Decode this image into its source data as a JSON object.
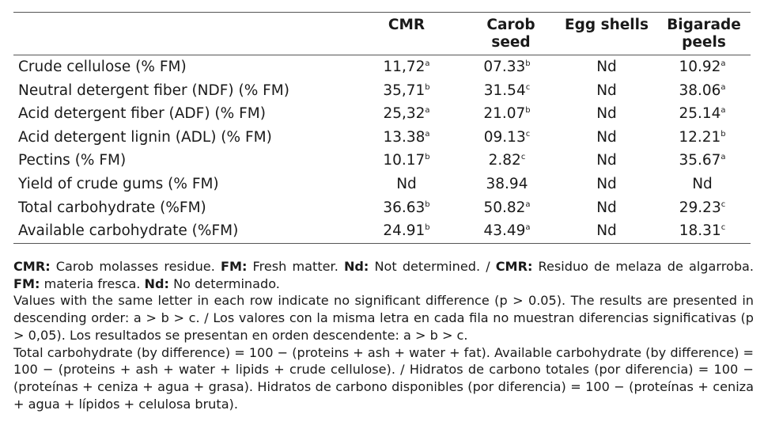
{
  "table": {
    "headers": [
      "",
      "CMR",
      "Carob seed",
      "Egg shells",
      "Bigarade peels"
    ],
    "rows": [
      {
        "label": "Crude cellulose (% FM)",
        "cells": [
          {
            "v": "11,72",
            "s": "a"
          },
          {
            "v": "07.33",
            "s": "b"
          },
          {
            "v": "Nd",
            "s": ""
          },
          {
            "v": "10.92",
            "s": "a"
          }
        ]
      },
      {
        "label": "Neutral detergent fiber (NDF) (% FM)",
        "cells": [
          {
            "v": "35,71",
            "s": "b"
          },
          {
            "v": "31.54",
            "s": "c"
          },
          {
            "v": "Nd",
            "s": ""
          },
          {
            "v": "38.06",
            "s": "a"
          }
        ]
      },
      {
        "label": "Acid detergent fiber (ADF) (% FM)",
        "cells": [
          {
            "v": "25,32",
            "s": "a"
          },
          {
            "v": "21.07",
            "s": "b"
          },
          {
            "v": "Nd",
            "s": ""
          },
          {
            "v": "25.14",
            "s": "a"
          }
        ]
      },
      {
        "label": "Acid detergent lignin (ADL) (% FM)",
        "cells": [
          {
            "v": "13.38",
            "s": "a"
          },
          {
            "v": "09.13",
            "s": "c"
          },
          {
            "v": "Nd",
            "s": ""
          },
          {
            "v": "12.21",
            "s": "b"
          }
        ]
      },
      {
        "label": "Pectins (% FM)",
        "cells": [
          {
            "v": "10.17",
            "s": "b"
          },
          {
            "v": "2.82",
            "s": "c"
          },
          {
            "v": "Nd",
            "s": ""
          },
          {
            "v": "35.67",
            "s": "a"
          }
        ]
      },
      {
        "label": "Yield of crude gums (% FM)",
        "cells": [
          {
            "v": "Nd",
            "s": ""
          },
          {
            "v": "38.94",
            "s": ""
          },
          {
            "v": "Nd",
            "s": ""
          },
          {
            "v": "Nd",
            "s": ""
          }
        ]
      },
      {
        "label": "Total carbohydrate (%FM)",
        "cells": [
          {
            "v": "36.63",
            "s": "b"
          },
          {
            "v": "50.82",
            "s": "a"
          },
          {
            "v": "Nd",
            "s": ""
          },
          {
            "v": "29.23",
            "s": "c"
          }
        ]
      },
      {
        "label": "Available carbohydrate (%FM)",
        "cells": [
          {
            "v": "24.91",
            "s": "b"
          },
          {
            "v": "43.49",
            "s": "a"
          },
          {
            "v": "Nd",
            "s": ""
          },
          {
            "v": "18.31",
            "s": "c"
          }
        ]
      }
    ]
  },
  "notes": {
    "abbr": {
      "cmr_label": "CMR:",
      "cmr_text": " Carob molasses residue. ",
      "fm_label": "FM:",
      "fm_text": " Fresh matter. ",
      "nd_label": "Nd:",
      "nd_text": " Not determined. / ",
      "cmr_label_es": "CMR:",
      "cmr_text_es": " Residuo de melaza de algarroba. ",
      "fm_label_es": "FM:",
      "fm_text_es": " materia fresca. ",
      "nd_label_es": "Nd:",
      "nd_text_es": " No determinado."
    },
    "significance": "Values with the same letter in each row indicate no significant difference (p > 0.05). The results are presented in descending order: a > b > c. / Los valores con la misma letra en cada fila no muestran diferencias significativas (p > 0,05). Los resultados se presentan en orden descendente: a > b > c.",
    "carbohydrate": "Total carbohydrate (by difference) = 100 − (proteins + ash + water + fat). Available carbohydrate (by difference) = 100 − (proteins + ash + water + lipids + crude cellulose). / Hidratos de carbono totales (por diferencia) = 100 − (proteínas + ceniza + agua + grasa). Hidratos de carbono disponibles (por diferencia) = 100 − (proteínas + ceniza + agua + lípidos + celulosa bruta)."
  }
}
